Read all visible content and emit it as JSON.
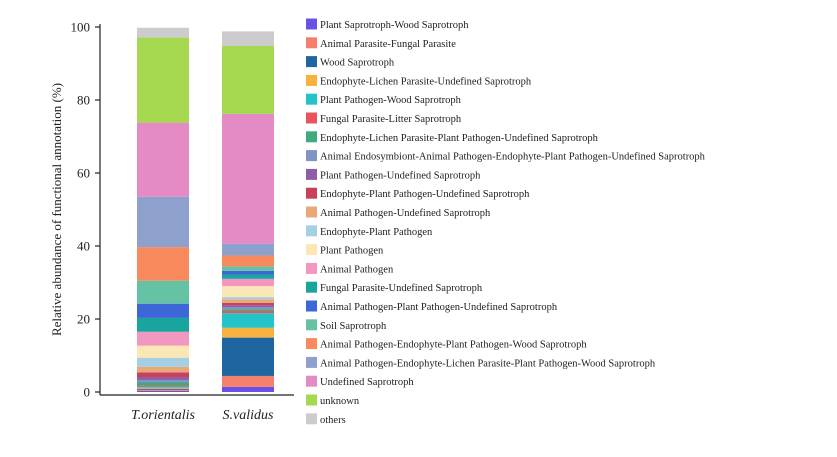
{
  "chart_data": {
    "type": "bar",
    "stacked": true,
    "title": "",
    "xlabel": "",
    "ylabel": "Relative abundance of functional annotation (%)",
    "ylim": [
      0,
      100
    ],
    "yticks": [
      0,
      20,
      40,
      60,
      80,
      100
    ],
    "categories": [
      "T.orientalis",
      "S.validus"
    ],
    "legend_position": "right",
    "grid": false,
    "series": [
      {
        "name": "Plant Saprotroph-Wood Saprotroph",
        "color": "#6a50e6",
        "values": [
          0.3,
          1.4
        ]
      },
      {
        "name": "Animal Parasite-Fungal Parasite",
        "color": "#f47f6c",
        "values": [
          0.3,
          3.0
        ]
      },
      {
        "name": "Wood Saprotroph",
        "color": "#1f65a0",
        "values": [
          0.3,
          10.5
        ]
      },
      {
        "name": "Endophyte-Lichen Parasite-Undefined Saprotroph",
        "color": "#f6b13f",
        "values": [
          0.3,
          2.7
        ]
      },
      {
        "name": "Plant Pathogen-Wood Saprotroph",
        "color": "#23c4c7",
        "values": [
          0.3,
          4.0
        ]
      },
      {
        "name": "Fungal Parasite-Litter Saprotroph",
        "color": "#e8535d",
        "values": [
          0.3,
          0.6
        ]
      },
      {
        "name": "Endophyte-Lichen Parasite-Plant Pathogen-Undefined Saprotroph",
        "color": "#3faa7e",
        "values": [
          0.8,
          0.5
        ]
      },
      {
        "name": "Animal Endosymbiont-Animal Pathogen-Endophyte-Plant Pathogen-Undefined Saprotroph",
        "color": "#7f93c4",
        "values": [
          0.7,
          0.5
        ]
      },
      {
        "name": "Plant Pathogen-Undefined Saprotroph",
        "color": "#8e5ca7",
        "values": [
          0.8,
          0.6
        ]
      },
      {
        "name": "Endophyte-Plant Pathogen-Undefined Saprotroph",
        "color": "#c7415b",
        "values": [
          1.3,
          0.6
        ]
      },
      {
        "name": "Animal Pathogen-Undefined Saprotroph",
        "color": "#e8a877",
        "values": [
          1.5,
          1.0
        ]
      },
      {
        "name": "Endophyte-Plant Pathogen",
        "color": "#a7cfe4",
        "values": [
          2.5,
          0.6
        ]
      },
      {
        "name": "Plant Pathogen",
        "color": "#fbe6b6",
        "values": [
          3.3,
          3.0
        ]
      },
      {
        "name": "Animal Pathogen",
        "color": "#f197c0",
        "values": [
          3.8,
          2.0
        ]
      },
      {
        "name": "Fungal Parasite-Undefined Saprotroph",
        "color": "#1aa49e",
        "values": [
          3.8,
          1.2
        ]
      },
      {
        "name": "Animal Pathogen-Plant Pathogen-Undefined Saprotroph",
        "color": "#3d66d6",
        "values": [
          3.9,
          1.0
        ]
      },
      {
        "name": "Soil Saprotroph",
        "color": "#66c2a5",
        "values": [
          6.3,
          1.2
        ]
      },
      {
        "name": "Animal Pathogen-Endophyte-Plant Pathogen-Wood Saprotroph",
        "color": "#f88a5e",
        "values": [
          9.2,
          3.0
        ]
      },
      {
        "name": "Animal Pathogen-Endophyte-Lichen Parasite-Plant Pathogen-Wood Saprotroph",
        "color": "#8ea0cc",
        "values": [
          13.8,
          3.2
        ]
      },
      {
        "name": "Undefined Saprotroph",
        "color": "#e48ac4",
        "values": [
          20.3,
          35.6
        ]
      },
      {
        "name": "unknown",
        "color": "#a6d84f",
        "values": [
          23.3,
          18.6
        ]
      },
      {
        "name": "others",
        "color": "#cccccc",
        "values": [
          2.7,
          4.0
        ]
      }
    ]
  }
}
